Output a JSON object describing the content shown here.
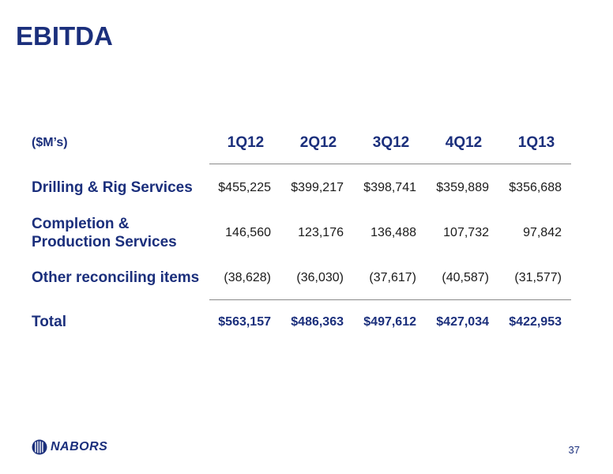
{
  "slide": {
    "title": "EBITDA",
    "page_number": "37"
  },
  "table": {
    "units_label": "($M’s)",
    "columns": [
      "1Q12",
      "2Q12",
      "3Q12",
      "4Q12",
      "1Q13"
    ],
    "rows": [
      {
        "label_lines": [
          "Drilling & Rig Services"
        ],
        "values": [
          "$455,225",
          "$399,217",
          "$398,741",
          "$359,889",
          "$356,688"
        ]
      },
      {
        "label_lines": [
          "Completion &",
          "Production Services"
        ],
        "values": [
          "146,560",
          "123,176",
          "136,488",
          "107,732",
          "97,842"
        ]
      },
      {
        "label_lines": [
          "Other reconciling items"
        ],
        "values": [
          "(38,628)",
          "(36,030)",
          "(37,617)",
          "(40,587)",
          "(31,577)"
        ]
      },
      {
        "label_lines": [
          "Total"
        ],
        "values": [
          "$563,157",
          "$486,363",
          "$497,612",
          "$427,034",
          "$422,953"
        ]
      }
    ]
  },
  "footer": {
    "logo_text": "NABORS",
    "logo_icon": "nabors-logo-mark-icon",
    "brand_color": "#1b2f7c"
  }
}
